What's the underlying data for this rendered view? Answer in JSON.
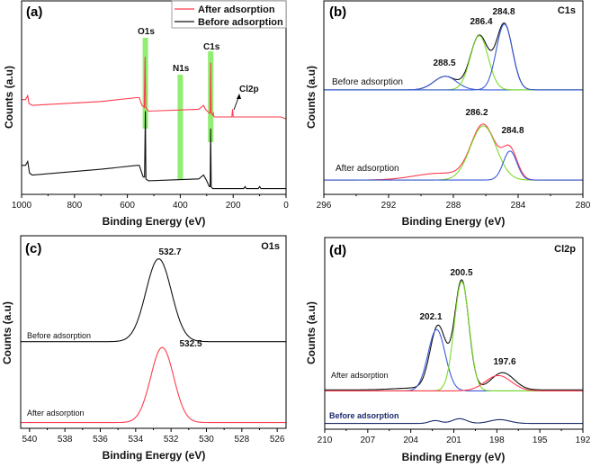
{
  "chart_data": [
    {
      "panel": "(a)",
      "type": "line",
      "xlabel": "Binding Energy (eV)",
      "ylabel": "Counts (a.u)",
      "xlim": [
        1000,
        0
      ],
      "ylim": [
        0,
        1
      ],
      "xticks": [
        1000,
        800,
        600,
        400,
        200,
        0
      ],
      "legend": {
        "position": "top-right",
        "entries": [
          "After adsorption",
          "Before adsorption"
        ]
      },
      "annotations": {
        "o1s": "O1s",
        "n1s": "N1s",
        "c1s": "C1s",
        "cl2p": "Cl2p"
      },
      "highlight_bands": [
        532,
        400,
        285
      ],
      "highlight_color": "#90ee70",
      "series": [
        {
          "name": "After adsorption",
          "color": "#ff3b4e",
          "points": [
            [
              1000,
              0.49
            ],
            [
              985,
              0.49
            ],
            [
              977,
              0.51
            ],
            [
              972,
              0.47
            ],
            [
              960,
              0.46
            ],
            [
              700,
              0.48
            ],
            [
              565,
              0.5
            ],
            [
              555,
              0.5
            ],
            [
              545,
              0.46
            ],
            [
              536,
              0.45
            ],
            [
              533,
              0.71
            ],
            [
              531,
              0.45
            ],
            [
              520,
              0.43
            ],
            [
              330,
              0.44
            ],
            [
              312,
              0.46
            ],
            [
              305,
              0.44
            ],
            [
              290,
              0.42
            ],
            [
              287,
              0.42
            ],
            [
              285,
              0.68
            ],
            [
              283,
              0.42
            ],
            [
              278,
              0.41
            ],
            [
              275,
              0.42
            ],
            [
              272,
              0.4
            ],
            [
              205,
              0.4
            ],
            [
              202,
              0.44
            ],
            [
              200,
              0.4
            ],
            [
              150,
              0.4
            ],
            [
              100,
              0.4
            ],
            [
              20,
              0.4
            ],
            [
              0,
              0.39
            ]
          ]
        },
        {
          "name": "Before adsorption",
          "color": "#111111",
          "points": [
            [
              1000,
              0.15
            ],
            [
              985,
              0.15
            ],
            [
              977,
              0.17
            ],
            [
              970,
              0.11
            ],
            [
              960,
              0.1
            ],
            [
              700,
              0.13
            ],
            [
              565,
              0.15
            ],
            [
              555,
              0.15
            ],
            [
              540,
              0.09
            ],
            [
              535,
              0.09
            ],
            [
              532,
              0.43
            ],
            [
              530,
              0.08
            ],
            [
              520,
              0.07
            ],
            [
              330,
              0.08
            ],
            [
              312,
              0.1
            ],
            [
              300,
              0.07
            ],
            [
              290,
              0.04
            ],
            [
              287,
              0.04
            ],
            [
              285,
              0.34
            ],
            [
              283,
              0.04
            ],
            [
              278,
              0.03
            ],
            [
              160,
              0.03
            ],
            [
              155,
              0.04
            ],
            [
              150,
              0.03
            ],
            [
              105,
              0.03
            ],
            [
              100,
              0.04
            ],
            [
              95,
              0.03
            ],
            [
              20,
              0.03
            ],
            [
              0,
              0.03
            ]
          ]
        }
      ]
    },
    {
      "panel": "(b)",
      "type": "line",
      "title": "C1s",
      "xlabel": "Binding Energy (eV)",
      "ylabel": "Counts (a.u)",
      "xlim": [
        296,
        280
      ],
      "ylim": [
        0,
        1
      ],
      "xticks": [
        296,
        292,
        288,
        284,
        280
      ],
      "annotations": {
        "before": "Before adsorption",
        "after": "After adsorption",
        "p1": "288.5",
        "p2": "286.4",
        "p3": "284.8",
        "p4": "286.2",
        "p5": "284.8"
      },
      "series": [
        {
          "label": "Before adsorption",
          "color": "#111111",
          "baseline": 0.54,
          "peaks": [
            [
              288.5,
              0.07,
              0.7
            ],
            [
              286.4,
              0.28,
              0.55
            ],
            [
              284.85,
              0.34,
              0.5
            ]
          ]
        },
        {
          "color": "#3b5bdb",
          "baseline": 0.54,
          "peaks": [
            [
              288.5,
              0.07,
              0.7
            ]
          ]
        },
        {
          "color": "#7ddc2a",
          "baseline": 0.54,
          "peaks": [
            [
              286.4,
              0.28,
              0.55
            ]
          ]
        },
        {
          "color": "#3b5bdb",
          "baseline": 0.54,
          "peaks": [
            [
              284.85,
              0.34,
              0.5
            ]
          ]
        },
        {
          "label": "After adsorption",
          "color": "#ff3b4e",
          "baseline": 0.074,
          "peaks": [
            [
              286.15,
              0.28,
              0.75
            ],
            [
              284.5,
              0.15,
              0.45
            ],
            [
              288.8,
              0.035,
              1.6
            ]
          ]
        },
        {
          "color": "#7ddc2a",
          "baseline": 0.074,
          "peaks": [
            [
              286.15,
              0.28,
              0.8
            ]
          ]
        },
        {
          "color": "#3b5bdb",
          "baseline": 0.074,
          "peaks": [
            [
              284.5,
              0.15,
              0.42
            ]
          ]
        }
      ]
    },
    {
      "panel": "(c)",
      "type": "line",
      "title": "O1s",
      "xlabel": "Binding Energy (eV)",
      "ylabel": "Counts (a.u)",
      "xlim": [
        540.5,
        525.5
      ],
      "ylim": [
        0,
        1
      ],
      "xticks": [
        540,
        538,
        536,
        534,
        532,
        530,
        528,
        526
      ],
      "annotations": {
        "before": "Before adsorption",
        "after": "After adsorption",
        "p1": "532.7",
        "p2": "532.5"
      },
      "series": [
        {
          "label": "Before adsorption",
          "color": "#111111",
          "baseline": 0.45,
          "peaks": [
            [
              532.7,
              0.43,
              0.72
            ]
          ]
        },
        {
          "label": "After adsorption",
          "color": "#ff3b4e",
          "baseline": 0.03,
          "peaks": [
            [
              532.5,
              0.39,
              0.65
            ]
          ]
        }
      ]
    },
    {
      "panel": "(d)",
      "type": "line",
      "title": "Cl2p",
      "xlabel": "Binding Energy (eV)",
      "ylabel": "Counts (a.u)",
      "xlim": [
        210,
        192
      ],
      "ylim": [
        0,
        1
      ],
      "xticks": [
        210,
        207,
        204,
        201,
        198,
        195,
        192
      ],
      "annotations": {
        "before": "Before adsorption",
        "after": "After adsorption",
        "p1": "202.1",
        "p2": "200.5",
        "p3": "197.6"
      },
      "series": [
        {
          "label": "After adsorption",
          "color": "#111111",
          "baseline": 0.205,
          "peaks": [
            [
              202.1,
              0.33,
              0.55
            ],
            [
              200.45,
              0.57,
              0.5
            ],
            [
              197.6,
              0.09,
              0.8
            ],
            [
              203.7,
              0.01,
              1.5
            ]
          ]
        },
        {
          "color": "#3b5bdb",
          "baseline": 0.2,
          "peaks": [
            [
              202.2,
              0.32,
              0.6
            ]
          ]
        },
        {
          "color": "#7ddc2a",
          "baseline": 0.2,
          "peaks": [
            [
              200.45,
              0.57,
              0.52
            ]
          ]
        },
        {
          "color": "#ff3b4e",
          "baseline": 0.2,
          "peaks": [
            [
              197.9,
              0.08,
              0.9
            ]
          ]
        },
        {
          "label": "Before adsorption",
          "color": "#1c2a6b",
          "baseline": 0.03,
          "peaks": [
            [
              202.3,
              0.015,
              0.4
            ],
            [
              200.6,
              0.025,
              0.5
            ],
            [
              197.8,
              0.02,
              0.7
            ]
          ]
        }
      ]
    }
  ]
}
